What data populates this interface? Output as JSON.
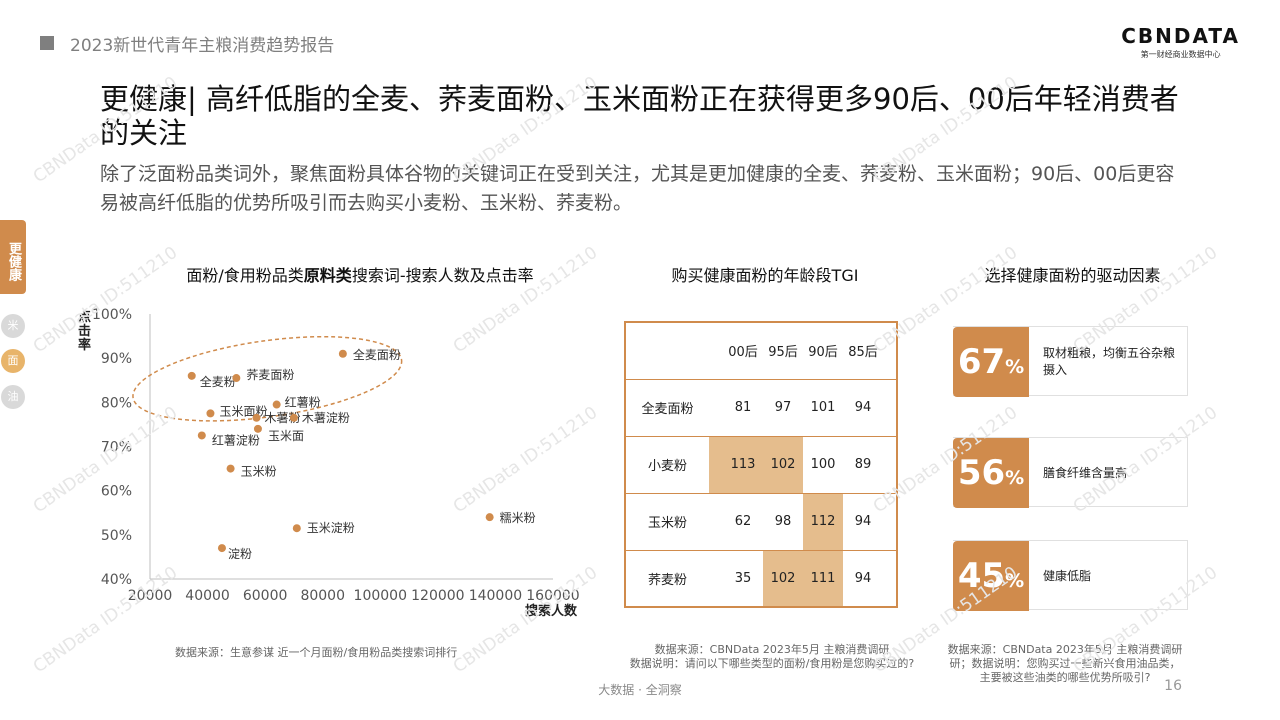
{
  "header": {
    "report_title": "2023新世代青年主粮消费趋势报告"
  },
  "logo": {
    "main": "CBNDATA",
    "sub": "第一财经商业数据中心"
  },
  "title": "更健康| 高纤低脂的全麦、荞麦面粉、玉米面粉正在获得更多90后、00后年轻消费者的关注",
  "subtitle": "除了泛面粉品类词外，聚焦面粉具体谷物的关键词正在受到关注，尤其是更加健康的全麦、荞麦粉、玉米面粉；90后、00后更容易被高纤低脂的优势所吸引而去购买小麦粉、玉米粉、荞麦粉。",
  "side_nav": {
    "active": "更健康",
    "items": [
      "米",
      "面",
      "油"
    ]
  },
  "scatter": {
    "title_pre": "面粉/食用粉品类",
    "title_bold": "原料类",
    "title_post": "搜索词-搜索人数及点击率",
    "source": "数据来源：生意参谋 近一个月面粉/食用粉品类搜索词排行"
  },
  "tgi": {
    "title": "购买健康面粉的年龄段TGI",
    "columns": [
      "00后",
      "95后",
      "90后",
      "85后"
    ],
    "rows": [
      {
        "label": "全麦面粉",
        "values": [
          "81",
          "97",
          "101",
          "94"
        ]
      },
      {
        "label": "小麦粉",
        "values": [
          "113",
          "102",
          "100",
          "89"
        ]
      },
      {
        "label": "玉米粉",
        "values": [
          "62",
          "98",
          "112",
          "94"
        ]
      },
      {
        "label": "荞麦粉",
        "values": [
          "35",
          "102",
          "111",
          "94"
        ]
      }
    ],
    "source_1": "数据来源：CBNData 2023年5月 主粮消费调研",
    "source_2": "数据说明：请问以下哪些类型的面粉/食用粉是您购买过的?"
  },
  "factors": {
    "title": "选择健康面粉的驱动因素",
    "items": [
      {
        "value": "67",
        "unit": "%",
        "label": "取材粗粮，均衡五谷杂粮摄入"
      },
      {
        "value": "56",
        "unit": "%",
        "label": "膳食纤维含量高"
      },
      {
        "value": "45",
        "unit": "%",
        "label": "健康低脂"
      }
    ],
    "source_1": "数据来源：CBNData 2023年5月 主粮消费调研",
    "source_2": "研；数据说明：您购买过一些新兴食用油品类，",
    "source_3": "主要被这些油类的哪些优势所吸引?"
  },
  "footer": {
    "text": "大数据 · 全洞察",
    "page": "16"
  },
  "watermark": "CBNData ID:511210",
  "colors": {
    "accent": "#d08b4c",
    "highlight": "#e5bd8d",
    "side_inactive": "#d9d9d9",
    "side_mid": "#e8b46a"
  },
  "chart_data": [
    {
      "type": "scatter",
      "xlabel": "搜索人数",
      "ylabel": "点击率",
      "xlim": [
        20000,
        160000
      ],
      "ylim": [
        40,
        100
      ],
      "xticks": [
        "20000",
        "40000",
        "60000",
        "80000",
        "100000",
        "120000",
        "140000",
        "160000"
      ],
      "yticks": [
        "40%",
        "50%",
        "60%",
        "70%",
        "80%",
        "90%",
        "100%"
      ],
      "points": [
        {
          "name": "全麦面粉",
          "x": 87000,
          "y": 91
        },
        {
          "name": "全麦粉",
          "x": 34500,
          "y": 86
        },
        {
          "name": "荞麦面粉",
          "x": 50000,
          "y": 85.5
        },
        {
          "name": "红薯粉",
          "x": 64000,
          "y": 79.5
        },
        {
          "name": "玉米面粉",
          "x": 41000,
          "y": 77.5
        },
        {
          "name": "木薯粉",
          "x": 57000,
          "y": 76.5
        },
        {
          "name": "木薯淀粉",
          "x": 70000,
          "y": 76.5
        },
        {
          "name": "玉米面",
          "x": 57500,
          "y": 74
        },
        {
          "name": "红薯淀粉",
          "x": 38000,
          "y": 72.5
        },
        {
          "name": "玉米粉",
          "x": 48000,
          "y": 65
        },
        {
          "name": "糯米粉",
          "x": 138000,
          "y": 54
        },
        {
          "name": "玉米淀粉",
          "x": 71000,
          "y": 51.5
        },
        {
          "name": "淀粉",
          "x": 45000,
          "y": 47
        }
      ]
    },
    {
      "type": "table",
      "title": "购买健康面粉的年龄段TGI",
      "columns": [
        "00后",
        "95后",
        "90后",
        "85后"
      ],
      "rows": [
        "全麦面粉",
        "小麦粉",
        "玉米粉",
        "荞麦粉"
      ],
      "values": [
        [
          81,
          97,
          101,
          94
        ],
        [
          113,
          102,
          100,
          89
        ],
        [
          62,
          98,
          112,
          94
        ],
        [
          35,
          102,
          111,
          94
        ]
      ]
    },
    {
      "type": "bar",
      "title": "选择健康面粉的驱动因素",
      "categories": [
        "取材粗粮，均衡五谷杂粮摄入",
        "膳食纤维含量高",
        "健康低脂"
      ],
      "values": [
        67,
        56,
        45
      ]
    }
  ]
}
